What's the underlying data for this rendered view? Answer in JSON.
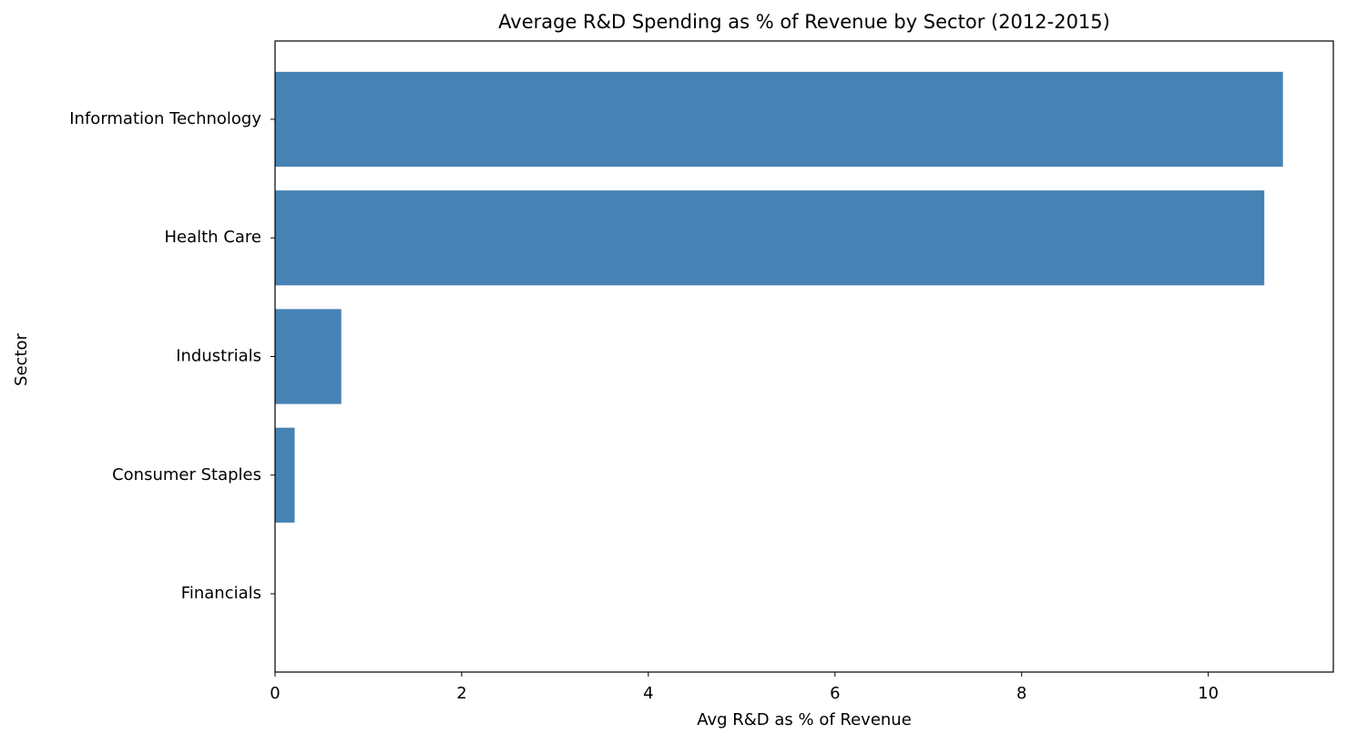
{
  "chart_data": {
    "type": "barh",
    "title": "Average R&D Spending as % of Revenue by Sector (2012-2015)",
    "x_label": "Avg R&D as % of Revenue",
    "y_label": "Sector",
    "categories": [
      "Information Technology",
      "Health Care",
      "Industrials",
      "Consumer Staples",
      "Financials"
    ],
    "values": [
      10.8,
      10.6,
      0.71,
      0.21,
      0
    ],
    "color": "#4682b4",
    "xlim": [
      0,
      11.34
    ],
    "xticks": [
      0,
      2,
      4,
      6,
      8,
      10
    ],
    "grid": false
  }
}
